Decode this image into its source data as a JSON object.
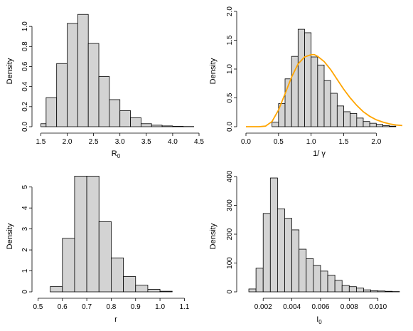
{
  "chart_data": [
    {
      "type": "bar",
      "histogram": true,
      "xlabel": "R",
      "xlabel_sub": "0",
      "ylabel": "Density",
      "xlim": [
        1.4,
        4.5
      ],
      "ylim": [
        0,
        1.15
      ],
      "xticks": [
        1.5,
        2.0,
        2.5,
        3.0,
        3.5,
        4.0,
        4.5
      ],
      "xtick_labels": [
        "1.5",
        "2.0",
        "2.5",
        "3.0",
        "3.5",
        "4.0",
        "4.5"
      ],
      "yticks": [
        0.0,
        0.2,
        0.4,
        0.6,
        0.8,
        1.0
      ],
      "ytick_labels": [
        "0.0",
        "0.2",
        "0.4",
        "0.6",
        "0.8",
        "1.0"
      ],
      "bin_edges": [
        1.5,
        1.6,
        1.8,
        2.0,
        2.2,
        2.4,
        2.6,
        2.8,
        3.0,
        3.2,
        3.4,
        3.6,
        3.8,
        4.0,
        4.2,
        4.4
      ],
      "values": [
        0.03,
        0.29,
        0.63,
        1.03,
        1.12,
        0.83,
        0.5,
        0.27,
        0.16,
        0.09,
        0.03,
        0.015,
        0.008,
        0.004,
        0.002
      ]
    },
    {
      "type": "bar",
      "histogram": true,
      "xlabel": "1/ γ",
      "xlabel_sub": "",
      "ylabel": "Density",
      "xlim": [
        0.0,
        2.4
      ],
      "ylim": [
        0,
        2.0
      ],
      "xticks": [
        0.0,
        0.5,
        1.0,
        1.5,
        2.0
      ],
      "xtick_labels": [
        "0.0",
        "0.5",
        "1.0",
        "1.5",
        "2.0"
      ],
      "yticks": [
        0.0,
        0.5,
        1.0,
        1.5,
        2.0
      ],
      "ytick_labels": [
        "0.0",
        "0.5",
        "1.0",
        "1.5",
        "2.0"
      ],
      "bin_edges": [
        0.4,
        0.5,
        0.6,
        0.7,
        0.8,
        0.9,
        1.0,
        1.1,
        1.2,
        1.3,
        1.4,
        1.5,
        1.6,
        1.7,
        1.8,
        1.9,
        2.0,
        2.1,
        2.2,
        2.3
      ],
      "values": [
        0.08,
        0.4,
        0.83,
        1.22,
        1.69,
        1.63,
        1.21,
        1.07,
        0.8,
        0.58,
        0.36,
        0.26,
        0.23,
        0.15,
        0.09,
        0.06,
        0.04,
        0.02,
        0.01
      ],
      "curve": {
        "color": "#ffa500",
        "x": [
          0.0,
          0.1,
          0.2,
          0.3,
          0.4,
          0.5,
          0.6,
          0.7,
          0.8,
          0.9,
          1.0,
          1.05,
          1.1,
          1.2,
          1.3,
          1.4,
          1.5,
          1.6,
          1.7,
          1.8,
          1.9,
          2.0,
          2.1,
          2.2,
          2.3,
          2.4
        ],
        "y": [
          0.0,
          0.0,
          0.0,
          0.01,
          0.09,
          0.29,
          0.57,
          0.86,
          1.09,
          1.21,
          1.25,
          1.25,
          1.22,
          1.13,
          0.99,
          0.82,
          0.65,
          0.5,
          0.37,
          0.26,
          0.18,
          0.12,
          0.08,
          0.05,
          0.03,
          0.02
        ]
      }
    },
    {
      "type": "bar",
      "histogram": true,
      "xlabel": "r",
      "xlabel_sub": "",
      "ylabel": "Density",
      "xlim": [
        0.49,
        1.16
      ],
      "ylim": [
        0,
        5.5
      ],
      "xticks": [
        0.5,
        0.6,
        0.7,
        0.8,
        0.9,
        1.0,
        1.1
      ],
      "xtick_labels": [
        "0.5",
        "0.6",
        "0.7",
        "0.8",
        "0.9",
        "1.0",
        "1.1"
      ],
      "yticks": [
        0,
        1,
        2,
        3,
        4,
        5
      ],
      "ytick_labels": [
        "0",
        "1",
        "2",
        "3",
        "4",
        "5"
      ],
      "bin_edges": [
        0.55,
        0.6,
        0.65,
        0.7,
        0.75,
        0.8,
        0.85,
        0.9,
        0.95,
        1.0,
        1.05
      ],
      "values": [
        0.25,
        2.55,
        5.52,
        5.52,
        3.35,
        1.62,
        0.73,
        0.32,
        0.12,
        0.03
      ]
    },
    {
      "type": "bar",
      "histogram": true,
      "xlabel": "I",
      "xlabel_sub": "0",
      "ylabel": "Density",
      "xlim": [
        0.0008,
        0.0117
      ],
      "ylim": [
        0,
        400
      ],
      "xticks": [
        0.002,
        0.004,
        0.006,
        0.008,
        0.01
      ],
      "xtick_labels": [
        "0.002",
        "0.004",
        "0.006",
        "0.008",
        "0.010"
      ],
      "yticks": [
        0,
        100,
        200,
        300,
        400
      ],
      "ytick_labels": [
        "0",
        "100",
        "200",
        "300",
        "400"
      ],
      "bin_edges": [
        0.001,
        0.0015,
        0.002,
        0.0025,
        0.003,
        0.0035,
        0.004,
        0.0045,
        0.005,
        0.0055,
        0.006,
        0.0065,
        0.007,
        0.0075,
        0.008,
        0.0085,
        0.009,
        0.0095,
        0.01,
        0.0105,
        0.011,
        0.0115
      ],
      "values": [
        10,
        82,
        272,
        395,
        288,
        255,
        215,
        148,
        115,
        92,
        72,
        58,
        40,
        22,
        18,
        13,
        7,
        4,
        3,
        2,
        1
      ]
    }
  ]
}
